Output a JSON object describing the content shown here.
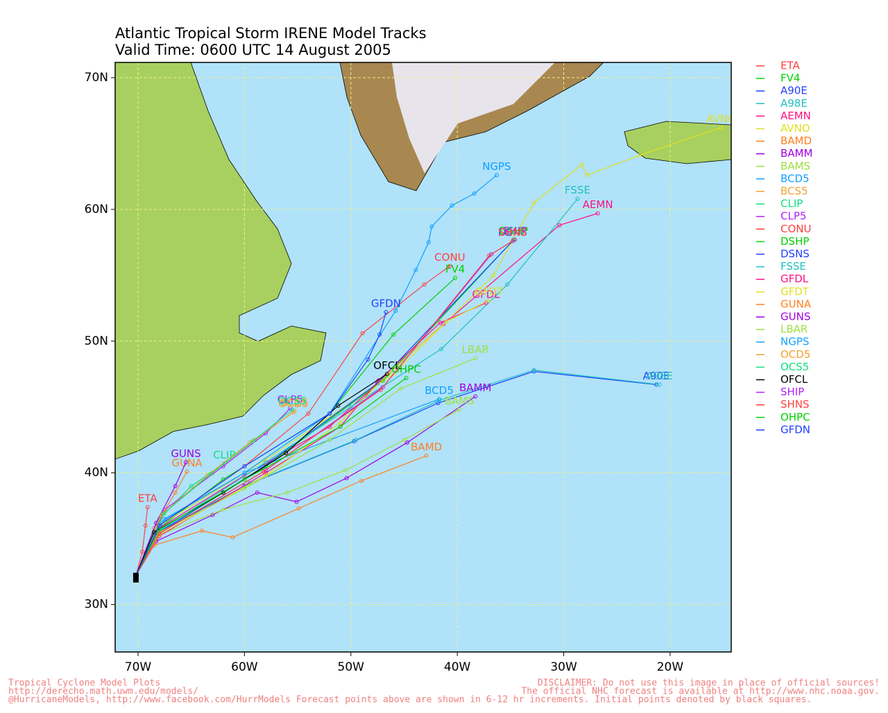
{
  "chart_data": {
    "type": "map",
    "title": "Atlantic Tropical Storm IRENE Model Tracks",
    "subtitle": "Valid Time: 0600 UTC 14 August 2005",
    "xlim": [
      -72.15,
      -14.26
    ],
    "ylim": [
      26.4,
      71.16
    ],
    "xticks": [
      {
        "value": -70,
        "label": "70W"
      },
      {
        "value": -60,
        "label": "60W"
      },
      {
        "value": -50,
        "label": "50W"
      },
      {
        "value": -40,
        "label": "40W"
      },
      {
        "value": -30,
        "label": "30W"
      },
      {
        "value": -20,
        "label": "20W"
      }
    ],
    "yticks": [
      {
        "value": 30,
        "label": "30N"
      },
      {
        "value": 40,
        "label": "40N"
      },
      {
        "value": 50,
        "label": "50N"
      },
      {
        "value": 60,
        "label": "60N"
      },
      {
        "value": 70,
        "label": "70N"
      }
    ],
    "grid": true,
    "series": [
      {
        "name": "ETA",
        "color": "#ff4040",
        "x": [
          -70.2,
          -69.6,
          -69.3,
          -69.1
        ],
        "y": [
          32.2,
          34.0,
          36.0,
          37.4
        ]
      },
      {
        "name": "FV4",
        "color": "#00d000",
        "x": [
          -70.2,
          -68.5,
          -62,
          -52,
          -46,
          -40.2
        ],
        "y": [
          32.2,
          35.5,
          39.5,
          44.5,
          50.5,
          54.8
        ]
      },
      {
        "name": "A90E",
        "color": "#2040ff",
        "x": [
          -70.2,
          -68,
          -60,
          -49.7,
          -41.8,
          -32.8,
          -21.3
        ],
        "y": [
          32.2,
          35.5,
          39.0,
          42.4,
          45.3,
          47.7,
          46.7
        ]
      },
      {
        "name": "A98E",
        "color": "#20c0c0",
        "x": [
          -70.2,
          -67.8,
          -59.5,
          -49.5,
          -41.7,
          -32.8,
          -21.0
        ],
        "y": [
          32.2,
          35.7,
          39.2,
          42.5,
          45.5,
          47.8,
          46.7
        ]
      },
      {
        "name": "AEMN",
        "color": "#ff1080",
        "x": [
          -70.2,
          -68,
          -60,
          -52,
          -41.3,
          -30.4,
          -26.8
        ],
        "y": [
          32.2,
          35.8,
          39.8,
          43.5,
          51.3,
          58.8,
          59.7
        ]
      },
      {
        "name": "AVNO",
        "color": "#e0e020",
        "x": [
          -70.2,
          -68,
          -58,
          -46,
          -36.6,
          -32.8,
          -28.3,
          -27.8,
          -22.9,
          -15.2
        ],
        "y": [
          32.2,
          36.0,
          41.0,
          47.5,
          55.0,
          60.5,
          63.4,
          62.6,
          64.1,
          66.2
        ]
      },
      {
        "name": "BAMD",
        "color": "#ff8020",
        "x": [
          -70.2,
          -68.5,
          -64,
          -61.1,
          -54.9,
          -49.0,
          -42.9
        ],
        "y": [
          32.2,
          34.5,
          35.6,
          35.1,
          37.3,
          39.4,
          41.3
        ]
      },
      {
        "name": "BAMM",
        "color": "#a000e0",
        "x": [
          -70.2,
          -68.3,
          -63,
          -58.8,
          -55.1,
          -50.4,
          -44.7,
          -38.3
        ],
        "y": [
          32.2,
          34.8,
          36.8,
          38.5,
          37.8,
          39.6,
          42.3,
          45.8
        ]
      },
      {
        "name": "BAMS",
        "color": "#a0e040",
        "x": [
          -70.2,
          -68,
          -62,
          -56,
          -50.5,
          -45.0,
          -39.8
        ],
        "y": [
          32.2,
          35.3,
          37.2,
          38.5,
          40.2,
          42.5,
          44.8
        ]
      },
      {
        "name": "BCD5",
        "color": "#10a0ff",
        "x": [
          -70.2,
          -67.5,
          -60,
          -52,
          -41.7
        ],
        "y": [
          32.2,
          36.5,
          40.0,
          42.5,
          45.6
        ]
      },
      {
        "name": "BCS5",
        "color": "#f0a030",
        "x": [
          -70.2,
          -67.5,
          -63,
          -59,
          -55.3
        ],
        "y": [
          32.2,
          37.0,
          40.0,
          42.5,
          44.7
        ]
      },
      {
        "name": "CLIP",
        "color": "#10e080",
        "x": [
          -70.2,
          -68,
          -65,
          -61.9
        ],
        "y": [
          32.2,
          36.5,
          39.0,
          40.7
        ]
      },
      {
        "name": "CLP5",
        "color": "#b020ff",
        "x": [
          -70.2,
          -67.5,
          -62,
          -58,
          -55.7
        ],
        "y": [
          32.2,
          37.2,
          40.5,
          43.0,
          44.9
        ]
      },
      {
        "name": "CONU",
        "color": "#ff4040",
        "x": [
          -70.2,
          -68,
          -60,
          -54,
          -48.9,
          -43.1,
          -40.7
        ],
        "y": [
          32.2,
          36.0,
          40.5,
          44.5,
          50.6,
          54.3,
          55.7
        ]
      },
      {
        "name": "DSHP",
        "color": "#00d000",
        "x": [
          -70.2,
          -68,
          -58,
          -47,
          -34.7
        ],
        "y": [
          32.2,
          35.5,
          40.5,
          47.0,
          57.7
        ]
      },
      {
        "name": "DSNS",
        "color": "#2040ff",
        "x": [
          -70.2,
          -68,
          -58.5,
          -47.5,
          -34.8
        ],
        "y": [
          32.2,
          35.5,
          40.3,
          46.8,
          57.6
        ]
      },
      {
        "name": "FSSE",
        "color": "#20c0c0",
        "x": [
          -70.2,
          -68,
          -58,
          -50,
          -41.5,
          -35.3,
          -28.7
        ],
        "y": [
          32.2,
          35.6,
          40.8,
          45.0,
          49.4,
          54.3,
          60.8
        ]
      },
      {
        "name": "GFDL",
        "color": "#ff1080",
        "x": [
          -70.2,
          -68,
          -58,
          -51,
          -47.4,
          -41.6,
          -37.3
        ],
        "y": [
          32.2,
          35.2,
          40.0,
          43.5,
          47.0,
          51.4,
          52.9
        ]
      },
      {
        "name": "GFDT",
        "color": "#e0e020",
        "x": [
          -70.2,
          -68,
          -58,
          -51,
          -46.5,
          -41.0,
          -37.0
        ],
        "y": [
          32.2,
          35.3,
          39.8,
          43.8,
          47.5,
          51.5,
          53.1
        ]
      },
      {
        "name": "GUNA",
        "color": "#ff8020",
        "x": [
          -70.2,
          -68.5,
          -66.5,
          -65.4
        ],
        "y": [
          32.2,
          35.8,
          38.5,
          40.1
        ]
      },
      {
        "name": "GUNS",
        "color": "#a000e0",
        "x": [
          -70.2,
          -68.3,
          -66.5,
          -65.5
        ],
        "y": [
          32.2,
          36.2,
          39.0,
          40.8
        ]
      },
      {
        "name": "LBAR",
        "color": "#a0e040",
        "x": [
          -70.2,
          -68,
          -60,
          -52,
          -45.3,
          -38.3
        ],
        "y": [
          32.2,
          35.5,
          38.8,
          42.5,
          46.4,
          48.7
        ]
      },
      {
        "name": "NGPS",
        "color": "#10a0ff",
        "x": [
          -70.2,
          -68,
          -60,
          -52,
          -45.8,
          -43.9,
          -42.7,
          -42.4,
          -40.5,
          -38.4,
          -36.3
        ],
        "y": [
          32.2,
          36.2,
          40.0,
          44.5,
          52.3,
          55.4,
          57.5,
          58.7,
          60.3,
          61.2,
          62.6
        ]
      },
      {
        "name": "OCD5",
        "color": "#f0a030",
        "x": [
          -70.2,
          -67.8,
          -63.5,
          -59.5,
          -55.4
        ],
        "y": [
          32.2,
          36.8,
          39.8,
          42.3,
          44.6
        ]
      },
      {
        "name": "OCS5",
        "color": "#10e080",
        "x": [
          -70.2,
          -67.6,
          -63.2,
          -59.2,
          -55.5
        ],
        "y": [
          32.2,
          36.9,
          39.9,
          42.4,
          44.8
        ]
      },
      {
        "name": "OFCL",
        "color": "#000000",
        "x": [
          -70.2,
          -68.5,
          -62,
          -56.1,
          -51.2,
          -46.6
        ],
        "y": [
          32.2,
          35.5,
          38.5,
          41.5,
          45.1,
          47.5
        ]
      },
      {
        "name": "SHIP",
        "color": "#b020ff",
        "x": [
          -70.2,
          -68,
          -58,
          -47,
          -36.8,
          -34.6
        ],
        "y": [
          32.2,
          35.4,
          40.2,
          46.5,
          56.6,
          57.7
        ]
      },
      {
        "name": "SHNS",
        "color": "#ff4040",
        "x": [
          -70.2,
          -68,
          -58.2,
          -47.2,
          -37.0,
          -34.8
        ],
        "y": [
          32.2,
          35.4,
          40.1,
          46.3,
          56.5,
          57.6
        ]
      },
      {
        "name": "OHPC",
        "color": "#00d000",
        "x": [
          -70.2,
          -68,
          -60,
          -51,
          -44.8
        ],
        "y": [
          32.2,
          35.7,
          39.5,
          43.5,
          47.2
        ]
      },
      {
        "name": "GFDN",
        "color": "#2040ff",
        "x": [
          -70.2,
          -68,
          -60,
          -52,
          -48.4,
          -47.3,
          -46.7
        ],
        "y": [
          32.2,
          36.0,
          40.5,
          44.5,
          48.6,
          50.5,
          52.2
        ]
      }
    ],
    "footer_left": [
      "Tropical Cyclone Model Plots",
      "http://derecho.math.uwm.edu/models/",
      "@HurricaneModels, http://www.facebook.com/HurrModels  Forecast points above are shown in 6-12 hr increments. Initial points denoted by black squares."
    ],
    "footer_right": [
      "DISCLAIMER: Do not use this image in place of official sources!",
      "The official NHC forecast is available at http://www.nhc.noaa.gov."
    ]
  }
}
